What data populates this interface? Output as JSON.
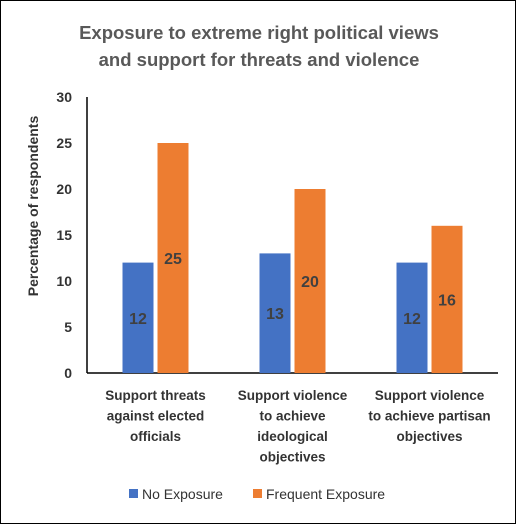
{
  "chart_data": {
    "type": "bar",
    "title": [
      "Exposure to extreme right political views",
      "and support for threats and violence"
    ],
    "ylabel": "Percentage of respondents",
    "xlabel": "",
    "ylim": [
      0,
      30
    ],
    "yticks": [
      "0",
      "5",
      "10",
      "15",
      "20",
      "25",
      "30"
    ],
    "categories": [
      [
        "Support threats",
        "against elected",
        "officials"
      ],
      [
        "Support violence",
        "to achieve",
        "ideological",
        "objectives"
      ],
      [
        "Support violence",
        "to achieve partisan",
        "objectives"
      ]
    ],
    "series": [
      {
        "name": "No Exposure",
        "values": [
          12,
          13,
          12
        ],
        "color": "#4472C4"
      },
      {
        "name": "Frequent Exposure",
        "values": [
          25,
          20,
          16
        ],
        "color": "#ED7D31"
      }
    ],
    "grid": false,
    "legend": "bottom"
  }
}
